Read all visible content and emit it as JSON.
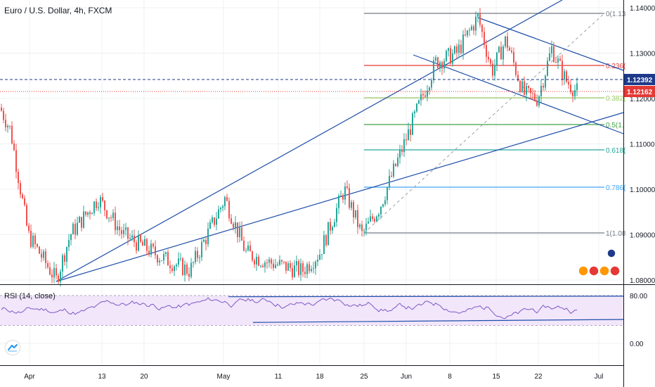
{
  "header": {
    "symbol_title": "Euro / U.S. Dollar, 4h, FXCM"
  },
  "rsi_panel": {
    "title": "RSI (14, close)",
    "axis_labels": [
      "80.00",
      "0.00"
    ]
  },
  "chart_data": {
    "type": "candlestick",
    "x_tick_labels": [
      "Apr",
      "13",
      "20",
      "May",
      "11",
      "18",
      "25",
      "Jun",
      "8",
      "15",
      "22",
      "Jul"
    ],
    "y_tick_labels": [
      "1.14000",
      "1.13000",
      "1.12000",
      "1.11000",
      "1.10000",
      "1.09000",
      "1.08000"
    ],
    "ylim": [
      1.0765,
      1.1415
    ],
    "price_badges": [
      {
        "value": "1.12392",
        "color": "#1e3a8a"
      },
      {
        "value": "1.12162",
        "color": "#e53935"
      }
    ],
    "fibonacci_levels": [
      {
        "label": "0(1.13",
        "color": "#787b86"
      },
      {
        "label": "0.236(",
        "color": "#e53935"
      },
      {
        "label": "0.382(",
        "color": "#9ccc65"
      },
      {
        "label": "0.5(1.",
        "color": "#43a047"
      },
      {
        "label": "0.618(",
        "color": "#26a69a"
      },
      {
        "label": "0.786(",
        "color": "#42a5f5"
      },
      {
        "label": "1(1.08",
        "color": "#787b86"
      }
    ],
    "candle_colors": {
      "up": "#26a69a",
      "down": "#ef5350"
    },
    "rsi": {
      "band": [
        30,
        80
      ],
      "ylim": [
        -22,
        96
      ]
    },
    "grid": true
  }
}
